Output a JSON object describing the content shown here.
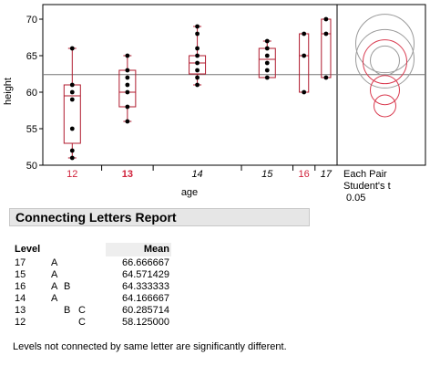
{
  "chart_data": {
    "type": "box",
    "ylabel": "height",
    "xlabel": "age",
    "ylim": [
      50,
      72
    ],
    "yticks": [
      50,
      55,
      60,
      65,
      70
    ],
    "grand_mean": 62.4,
    "groups": [
      {
        "label": "12",
        "n": 8,
        "points": [
          51,
          52,
          55,
          59,
          60,
          61,
          66
        ],
        "q1": 53,
        "median": 59.5,
        "q3": 61,
        "whisker_low": 51,
        "whisker_high": 66,
        "label_color": "#d0213a",
        "label_style": "normal"
      },
      {
        "label": "13",
        "n": 7,
        "points": [
          56,
          58,
          60,
          61,
          62,
          63,
          65
        ],
        "q1": 58,
        "median": 60,
        "q3": 63,
        "whisker_low": 56,
        "whisker_high": 65,
        "label_color": "#d0213a",
        "label_style": "bold"
      },
      {
        "label": "14",
        "n": 12,
        "points": [
          61,
          62,
          63,
          64,
          65,
          66,
          68,
          69
        ],
        "q1": 62.5,
        "median": 64,
        "q3": 65,
        "whisker_low": 61,
        "whisker_high": 69,
        "label_color": "#000000",
        "label_style": "italic"
      },
      {
        "label": "15",
        "n": 7,
        "points": [
          62,
          63,
          64,
          65,
          66,
          67
        ],
        "q1": 62,
        "median": 64.5,
        "q3": 66,
        "whisker_low": 62,
        "whisker_high": 67,
        "label_color": "#000000",
        "label_style": "italic"
      },
      {
        "label": "16",
        "n": 3,
        "points": [
          60,
          65,
          68
        ],
        "q1": 60,
        "median": 65,
        "q3": 68,
        "whisker_low": 60,
        "whisker_high": 68,
        "label_color": "#d0213a",
        "label_style": "normal"
      },
      {
        "label": "17",
        "n": 3,
        "points": [
          62,
          68,
          70
        ],
        "q1": 62,
        "median": 68,
        "q3": 70,
        "whisker_low": 62,
        "whisker_high": 70,
        "label_color": "#000000",
        "label_style": "italic"
      }
    ],
    "comparison_circles": {
      "label_lines": [
        "Each Pair",
        "Student's t",
        "0.05"
      ],
      "circles": [
        {
          "center": 66.667,
          "radius": 4.0,
          "color": "#9a9a9a"
        },
        {
          "center": 64.571,
          "radius": 4.0,
          "color": "#9a9a9a"
        },
        {
          "center": 64.333,
          "radius": 2.0,
          "color": "#9a9a9a"
        },
        {
          "center": 64.167,
          "radius": 3.0,
          "color": "#d93b50"
        },
        {
          "center": 60.286,
          "radius": 2.0,
          "color": "#d93b50"
        },
        {
          "center": 58.125,
          "radius": 1.5,
          "color": "#d93b50"
        }
      ]
    },
    "colors": {
      "box": "#b01a2e",
      "point": "#000000",
      "grand_mean_line": "#777777",
      "highlight": "#d0213a",
      "gray_circle": "#9a9a9a"
    }
  },
  "report": {
    "title": "Connecting Letters Report",
    "headers": {
      "level": "Level",
      "mean": "Mean"
    },
    "rows": [
      {
        "level": "17",
        "letters": [
          "A",
          "",
          ""
        ],
        "mean": "66.666667"
      },
      {
        "level": "15",
        "letters": [
          "A",
          "",
          ""
        ],
        "mean": "64.571429"
      },
      {
        "level": "16",
        "letters": [
          "A",
          "B",
          ""
        ],
        "mean": "64.333333"
      },
      {
        "level": "14",
        "letters": [
          "A",
          "",
          ""
        ],
        "mean": "64.166667"
      },
      {
        "level": "13",
        "letters": [
          "",
          "B",
          "C"
        ],
        "mean": "60.285714"
      },
      {
        "level": "12",
        "letters": [
          "",
          "",
          "C"
        ],
        "mean": "58.125000"
      }
    ],
    "footnote": "Levels not connected by same letter are significantly different."
  }
}
